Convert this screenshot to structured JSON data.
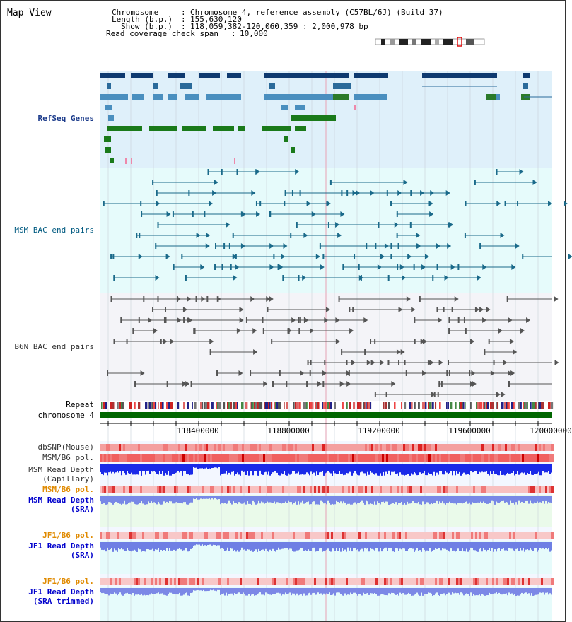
{
  "app": {
    "title": "Map View"
  },
  "info": {
    "chromosome_key": "Chromosome",
    "chromosome_value": "Chromosome 4, reference assembly (C57BL/6J) (Build 37)",
    "length_key": "Length (b.p.)",
    "length_value": "155,630,120",
    "show_key": "Show (b.p.)",
    "show_value": "118,059,382-120,060,359 : 2,000,978 bp",
    "span_key": "Read coverage check span",
    "span_value": "10,000"
  },
  "ideogram": {
    "highlight_color": "#dd0000"
  },
  "tracks": {
    "refseq": {
      "label": "RefSeq Genes",
      "color": "#1a3a8a",
      "bg": "#dff0fa"
    },
    "msm_bac": {
      "label": "MSM BAC end pairs",
      "color": "#005a80",
      "bg": "#e6fbfb"
    },
    "b6n_bac": {
      "label": "B6N BAC end pairs",
      "color": "#333333",
      "bg": "#f4f4f8"
    },
    "repeat": {
      "label": "Repeat"
    },
    "chrom": {
      "label": "chromosome 4",
      "color": "#006600"
    },
    "dbsnp": {
      "label": "dbSNP(Mouse)"
    },
    "msm_b6_pol_1": {
      "label": "MSM/B6 pol."
    },
    "msm_depth_cap": {
      "label_line1": "MSM Read Depth",
      "label_line2": "(Capillary)"
    },
    "msm_b6_pol_2": {
      "label": "MSM/B6 pol.",
      "color": "#e08a00"
    },
    "msm_depth_sra": {
      "label_line1": "MSM Read Depth",
      "label_line2": "(SRA)",
      "color": "#0000cc"
    },
    "jf1_b6_pol_1": {
      "label": "JF1/B6 pol.",
      "color": "#e08a00"
    },
    "jf1_depth_sra": {
      "label_line1": "JF1 Read Depth",
      "label_line2": "(SRA)",
      "color": "#0000cc"
    },
    "jf1_b6_pol_2": {
      "label": "JF1/B6 pol.",
      "color": "#e08a00"
    },
    "jf1_depth_trim": {
      "label_line1": "JF1 Read Depth",
      "label_line2": "(SRA trimmed)",
      "color": "#0000cc"
    }
  },
  "axis": {
    "ticks": [
      "118400000",
      "118800000",
      "119200000",
      "119600000",
      "120000000"
    ]
  }
}
